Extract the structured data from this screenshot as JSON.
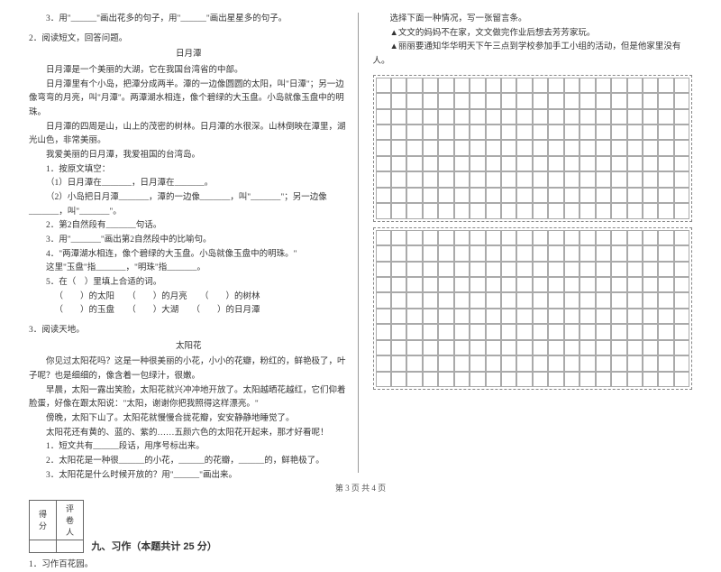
{
  "left": {
    "l1": "3．用\"______\"画出花多的句子，用\"______\"画出星星多的句子。",
    "l2": "2．阅读短文，回答问题。",
    "title1": "日月潭",
    "p1": "日月潭是一个美丽的大湖，它在我国台湾省的中部。",
    "p2": "日月潭里有个小岛，把潭分成两半。潭的一边像圆圆的太阳，叫\"日潭\"；另一边像弯弯的月亮，叫\"月潭\"。两潭湖水相连，像个碧绿的大玉盘。小岛就像玉盘中的明珠。",
    "p3": "日月潭的四周是山，山上的茂密的树林。日月潭的水很深。山林倒映在潭里，湖光山色，非常美丽。",
    "p4": "我爱美丽的日月潭，我爱祖国的台湾岛。",
    "q1": "1．按原文填空：",
    "q1a": "（1）日月潭在_______，日月潭在_______。",
    "q1b": "（2）小岛把日月潭_______，潭的一边像_______，叫\"_______\"；另一边像_______，叫\"_______\"。",
    "q2": "2．第2自然段有_______句话。",
    "q3": "3．用\"_______\"画出第2自然段中的比喻句。",
    "q4": "4．\"两潭湖水相连，像个碧绿的大玉盘。小岛就像玉盘中的明珠。\"",
    "q4a": "这里\"玉盘\"指_______，\"明珠\"指_______。",
    "q5": "5．在（　）里填上合适的词。",
    "q5a": "（　　）的太阳　　（　　）的月亮　　（　　）的树林",
    "q5b": "（　　）的玉盘　　（　　）大湖　　（　　）的日月潭",
    "l3": "3．阅读天地。",
    "title2": "太阳花",
    "pa": "你见过太阳花吗？这是一种很美丽的小花，小小的花瓣，粉红的，鲜艳极了，叶子呢？也是细细的，像含着一包绿汁，很嫩。",
    "pb": "早晨，太阳一露出笑脸，太阳花就兴冲冲地开放了。太阳越晒花越红，它们仰着脸蛋，好像在跟太阳说：\"太阳，谢谢你把我照得这样漂亮。\"",
    "pc": "傍晚，太阳下山了。太阳花就慢慢合拢花瓣，安安静静地睡觉了。",
    "pd": "太阳花还有黄的、蓝的、紫的……五颜六色的太阳花开起来，那才好看呢！",
    "qa": "1．短文共有______段话，用序号标出来。",
    "qb": "2．太阳花是一种很______的小花，______的花瓣，______的，鲜艳极了。",
    "qc": "3．太阳花是什么时候开放的？用\"______\"画出来。",
    "score1": "得分",
    "score2": "评卷人",
    "sec9": "九、习作（本题共计 25 分）",
    "x1": "1．习作百花园。"
  },
  "right": {
    "r1": "选择下面一种情况，写一张留言条。",
    "r2": "▲文文的妈妈不在家，文文做完作业后想去芳芳家玩。",
    "r3": "▲丽丽要通知华华明天下午三点到学校参加手工小组的活动，但是他家里没有人。"
  },
  "footer": "第 3 页 共 4 页",
  "grid": {
    "cols": 20,
    "rows1": 9,
    "rows2": 10
  }
}
